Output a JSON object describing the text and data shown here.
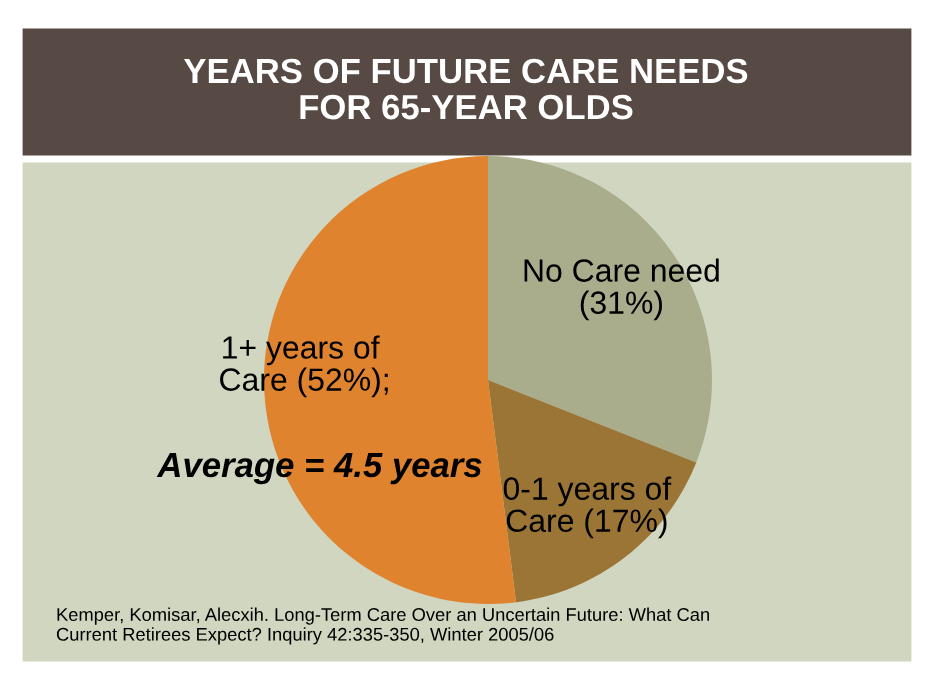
{
  "chart_data": {
    "type": "pie",
    "title": "YEARS OF FUTURE CARE NEEDS\nFOR 65-YEAR OLDS",
    "categories": [
      "No Care need\n(31%)",
      "0-1 years of\nCare (17%)",
      "1+ years of\nCare (52%)"
    ],
    "values": [
      31,
      17,
      52
    ],
    "colors": [
      "#a9ad8b",
      "#9b7535",
      "#df832f"
    ],
    "annotations": [
      ";",
      "Average = 4.5 years",
      "Kemper, Komisar, Alecxih. Long-Term Care Over an Uncertain Future: What Can\nCurrent Retirees Expect? Inquiry 42:335-350, Winter 2005/06"
    ]
  }
}
